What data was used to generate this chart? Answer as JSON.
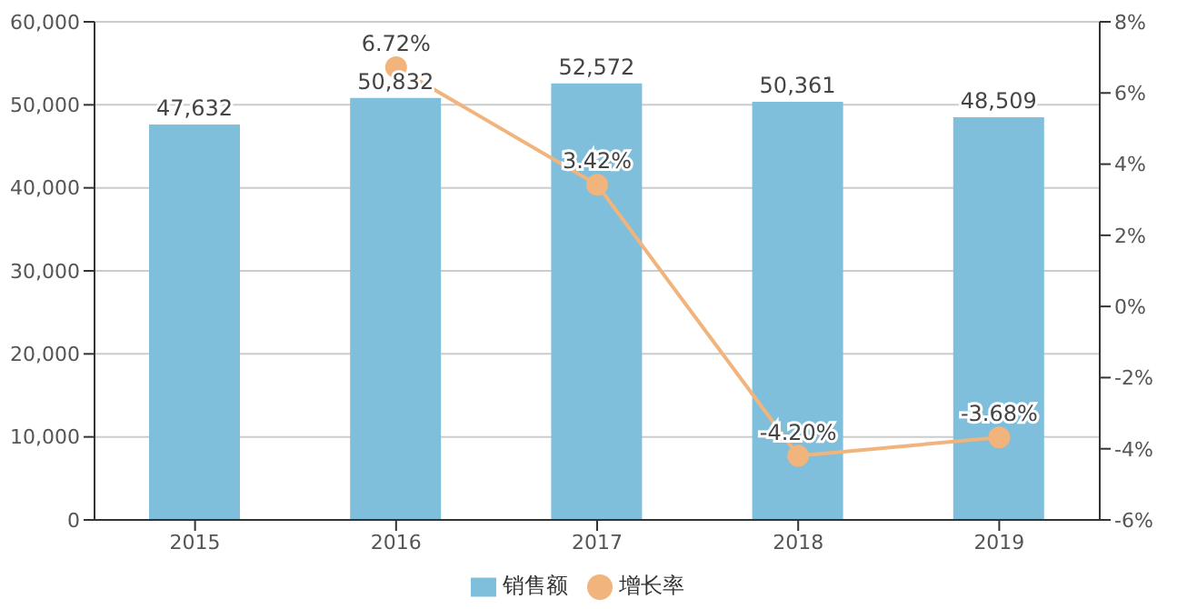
{
  "chart_data": {
    "type": "bar",
    "categories": [
      "2015",
      "2016",
      "2017",
      "2018",
      "2019"
    ],
    "series": [
      {
        "name": "销售额",
        "color": "#7fbfdc",
        "values": [
          47632,
          50832,
          52572,
          50361,
          48509
        ],
        "value_labels": [
          "47,632",
          "50,832",
          "52,572",
          "50,361",
          "48,509"
        ]
      },
      {
        "name": "增长率",
        "type": "line",
        "axis": "y2",
        "color": "#f0b47c",
        "values": [
          null,
          6.72,
          3.42,
          -4.2,
          -3.68
        ],
        "value_labels": [
          null,
          "6.72%",
          "3.42%",
          "-4.20%",
          "-3.68%"
        ]
      }
    ],
    "ylim": [
      0,
      60000
    ],
    "yticks": [
      {
        "value": 0,
        "label": "0"
      },
      {
        "value": 10000,
        "label": "10,000"
      },
      {
        "value": 20000,
        "label": "20,000"
      },
      {
        "value": 30000,
        "label": "30,000"
      },
      {
        "value": 40000,
        "label": "40,000"
      },
      {
        "value": 50000,
        "label": "50,000"
      },
      {
        "value": 60000,
        "label": "60,000"
      }
    ],
    "y2lim": [
      -6,
      8
    ],
    "y2ticks": [
      {
        "value": -6,
        "label": "-6%"
      },
      {
        "value": -4,
        "label": "-4%"
      },
      {
        "value": -2,
        "label": "-2%"
      },
      {
        "value": 0,
        "label": "0%"
      },
      {
        "value": 2,
        "label": "2%"
      },
      {
        "value": 4,
        "label": "4%"
      },
      {
        "value": 6,
        "label": "6%"
      },
      {
        "value": 8,
        "label": "8%"
      }
    ],
    "grid": "y",
    "legend": "bottom",
    "marker": "circle",
    "line_style": "solid"
  }
}
